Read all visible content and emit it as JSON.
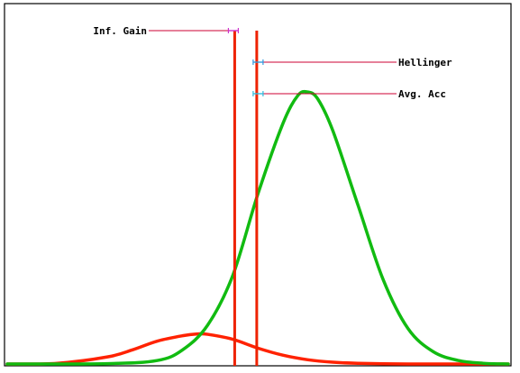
{
  "chart_data": {
    "type": "line",
    "title": "",
    "xlabel": "",
    "ylabel": "",
    "xlim": [
      0,
      100
    ],
    "ylim": [
      0,
      1
    ],
    "grid": false,
    "legend": "none",
    "series": [
      {
        "color": "#ff2200",
        "x": [
          0,
          10,
          20,
          25,
          30,
          35,
          38,
          40,
          45,
          50,
          55,
          60,
          65,
          70,
          80,
          100
        ],
        "values": [
          0.0,
          0.002,
          0.02,
          0.04,
          0.065,
          0.08,
          0.085,
          0.084,
          0.07,
          0.045,
          0.025,
          0.012,
          0.005,
          0.002,
          0.0,
          0.0
        ]
      },
      {
        "color": "#11bb11",
        "x": [
          0,
          20,
          30,
          35,
          40,
          45,
          50,
          55,
          58,
          60,
          62,
          65,
          70,
          75,
          80,
          85,
          90,
          95,
          100
        ],
        "values": [
          0.0,
          0.001,
          0.01,
          0.04,
          0.11,
          0.25,
          0.48,
          0.68,
          0.76,
          0.77,
          0.75,
          0.66,
          0.45,
          0.24,
          0.1,
          0.035,
          0.01,
          0.002,
          0.0
        ]
      }
    ],
    "thresholds": [
      {
        "label": "Inf. Gain",
        "x": 45.4,
        "marker_color": "#cc33cc",
        "label_side": "left"
      },
      {
        "label": "Hellinger",
        "x": 49.8,
        "marker_color": "#3399dd",
        "label_side": "right"
      },
      {
        "label": "Avg. Acc",
        "x": 49.8,
        "marker_color": "#33bbdd",
        "label_side": "right"
      }
    ]
  }
}
